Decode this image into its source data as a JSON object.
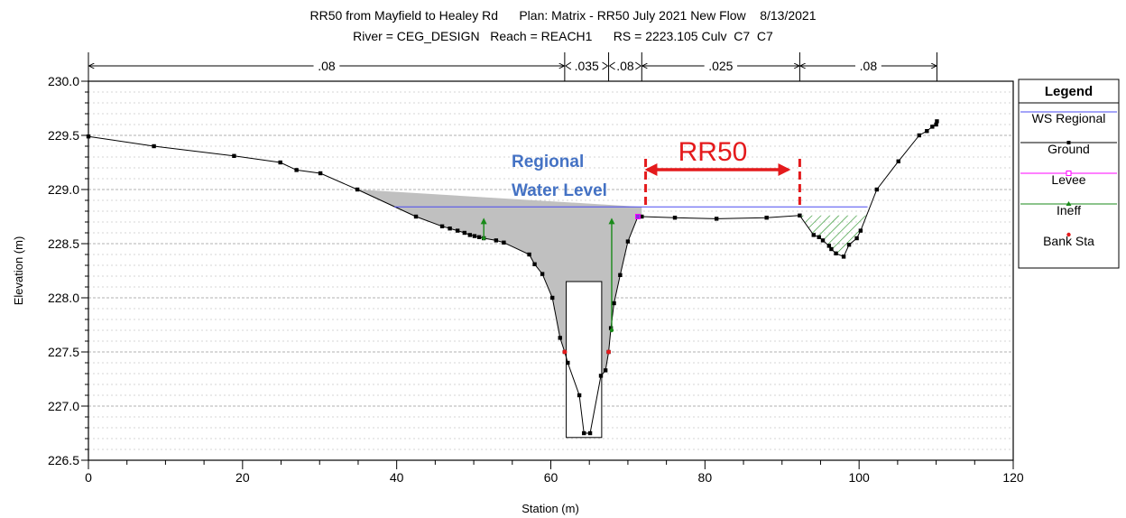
{
  "chart_data": {
    "type": "line",
    "title": "RR50 from Mayfield to Healey Rd      Plan: Matrix - RR50 July 2021 New Flow    8/13/2021",
    "subtitle": "River = CEG_DESIGN   Reach = REACH1      RS = 2223.105 Culv  C7  C7",
    "xlabel": "Station (m)",
    "ylabel": "Elevation (m)",
    "xlim": [
      0,
      120
    ],
    "ylim": [
      226.5,
      230.0
    ],
    "x_ticks": [
      "0",
      "20",
      "40",
      "60",
      "80",
      "100",
      "120"
    ],
    "y_ticks": [
      "226.5",
      "227.0",
      "227.5",
      "228.0",
      "228.5",
      "229.0",
      "229.5",
      "230.0"
    ],
    "grid": true,
    "legend": {
      "title": "Legend",
      "placement": "right",
      "entries": [
        {
          "label": "WS Regional",
          "color": "#4a4af0"
        },
        {
          "label": "Ground",
          "color": "#000000"
        },
        {
          "label": "Levee",
          "color": "#ff00ff"
        },
        {
          "label": "Ineff",
          "color": "#1a8a1a"
        },
        {
          "label": "Bank Sta",
          "color": "#e41a1c"
        }
      ]
    },
    "manning_n": [
      {
        "label": ".08",
        "start": 0,
        "end": 61.8
      },
      {
        "label": ".035",
        "start": 61.8,
        "end": 67.5
      },
      {
        "label": ".08",
        "start": 67.5,
        "end": 71.8
      },
      {
        "label": ".025",
        "start": 71.8,
        "end": 92.3
      },
      {
        "label": ".08",
        "start": 92.3,
        "end": 110.1
      }
    ],
    "ground": [
      [
        0,
        229.49
      ],
      [
        8.5,
        229.4
      ],
      [
        18.9,
        229.31
      ],
      [
        24.9,
        229.25
      ],
      [
        27,
        229.18
      ],
      [
        30.1,
        229.15
      ],
      [
        34.9,
        229.0
      ],
      [
        42.5,
        228.75
      ],
      [
        45.9,
        228.66
      ],
      [
        46.9,
        228.64
      ],
      [
        47.9,
        228.62
      ],
      [
        48.8,
        228.6
      ],
      [
        49.5,
        228.58
      ],
      [
        50.1,
        228.57
      ],
      [
        50.7,
        228.56
      ],
      [
        51.3,
        228.55
      ],
      [
        52.9,
        228.53
      ],
      [
        53.9,
        228.51
      ],
      [
        57.2,
        228.4
      ],
      [
        57.9,
        228.31
      ],
      [
        58.9,
        228.22
      ],
      [
        60.2,
        228.0
      ],
      [
        61.2,
        227.63
      ],
      [
        61.8,
        227.5
      ],
      [
        62.2,
        227.4
      ],
      [
        63.7,
        227.1
      ],
      [
        64.3,
        226.75
      ],
      [
        65.1,
        226.75
      ],
      [
        66.5,
        227.28
      ],
      [
        67.1,
        227.33
      ],
      [
        67.5,
        227.5
      ],
      [
        67.8,
        227.72
      ],
      [
        68.2,
        227.95
      ],
      [
        69.0,
        228.21
      ],
      [
        70.0,
        228.52
      ],
      [
        71.3,
        228.75
      ],
      [
        71.8,
        228.75
      ],
      [
        76.1,
        228.74
      ],
      [
        81.5,
        228.73
      ],
      [
        88.0,
        228.74
      ],
      [
        92.3,
        228.76
      ],
      [
        94.1,
        228.58
      ],
      [
        94.8,
        228.56
      ],
      [
        95.3,
        228.53
      ],
      [
        96.1,
        228.48
      ],
      [
        96.4,
        228.45
      ],
      [
        97.0,
        228.41
      ],
      [
        98.0,
        228.38
      ],
      [
        98.7,
        228.49
      ],
      [
        99.7,
        228.55
      ],
      [
        100.2,
        228.62
      ],
      [
        102.3,
        229.0
      ],
      [
        105.1,
        229.26
      ],
      [
        107.8,
        229.5
      ],
      [
        108.8,
        229.54
      ],
      [
        109.5,
        229.58
      ],
      [
        110.0,
        229.6
      ],
      [
        110.1,
        229.63
      ]
    ],
    "ground_fill": [
      [
        34.9,
        229.0
      ],
      [
        42.5,
        228.75
      ],
      [
        45.9,
        228.66
      ],
      [
        46.9,
        228.64
      ],
      [
        47.9,
        228.62
      ],
      [
        48.8,
        228.6
      ],
      [
        49.5,
        228.58
      ],
      [
        50.1,
        228.57
      ],
      [
        50.7,
        228.56
      ],
      [
        51.3,
        228.55
      ],
      [
        52.9,
        228.53
      ],
      [
        53.9,
        228.51
      ],
      [
        57.2,
        228.4
      ],
      [
        57.9,
        228.31
      ],
      [
        58.9,
        228.22
      ],
      [
        60.2,
        228.0
      ],
      [
        61.2,
        227.63
      ],
      [
        61.8,
        227.5
      ],
      [
        62.2,
        227.4
      ],
      [
        63.7,
        227.1
      ],
      [
        64.3,
        226.75
      ],
      [
        65.1,
        226.75
      ],
      [
        66.5,
        227.28
      ],
      [
        67.1,
        227.33
      ],
      [
        67.5,
        227.5
      ],
      [
        67.8,
        227.72
      ],
      [
        68.2,
        227.95
      ],
      [
        69.0,
        228.21
      ],
      [
        70.0,
        228.52
      ],
      [
        71.3,
        228.75
      ],
      [
        71.8,
        228.75
      ]
    ],
    "ws_regional": {
      "y": 228.84,
      "x_start": 39.7,
      "x_end": 101.1
    },
    "culvert_box": {
      "x_start": 62.0,
      "x_end": 66.6,
      "y_bottom": 226.71,
      "y_top": 228.15
    },
    "ineff_flow": [
      {
        "x": 51.3,
        "y_bottom": 228.55,
        "y_top": 228.76
      },
      {
        "x": 67.9,
        "y_bottom": 227.7,
        "y_top": 228.76
      }
    ],
    "levee": {
      "x": 71.3,
      "y": 228.75
    },
    "bank_stations": [
      {
        "x": 61.8,
        "y": 227.5
      },
      {
        "x": 67.5,
        "y": 227.5
      }
    ],
    "ineff_hatch": {
      "points": [
        [
          92.3,
          228.76
        ],
        [
          94.1,
          228.58
        ],
        [
          94.8,
          228.56
        ],
        [
          95.3,
          228.53
        ],
        [
          96.1,
          228.48
        ],
        [
          96.4,
          228.45
        ],
        [
          97.0,
          228.41
        ],
        [
          98.0,
          228.38
        ],
        [
          98.7,
          228.49
        ],
        [
          99.7,
          228.55
        ],
        [
          100.2,
          228.62
        ],
        [
          101.1,
          228.76
        ]
      ]
    },
    "annotations": {
      "regional_label_line1": "Regional",
      "regional_label_line2": "Water Level",
      "rr50_label": "RR50",
      "rr50_span": [
        72.5,
        90.8
      ],
      "rr50_marks": [
        72.3,
        92.3
      ]
    }
  }
}
